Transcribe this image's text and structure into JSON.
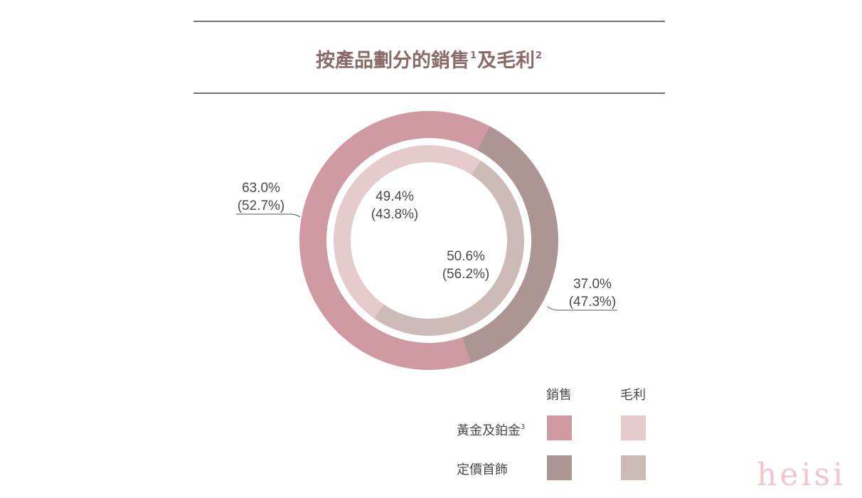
{
  "title": {
    "text": "按產品劃分的銷售",
    "sup1": "1",
    "mid": "及毛利",
    "sup2": "2"
  },
  "chart_data": {
    "type": "pie",
    "variant": "nested-donut",
    "rings": [
      {
        "ring": "outer",
        "name": "銷售",
        "slices": [
          {
            "category": "黃金及鉑金",
            "value": 63.0,
            "label": "63.0%",
            "prior_label": "(52.7%)",
            "color": "#cf9aa2"
          },
          {
            "category": "定價首飾",
            "value": 37.0,
            "label": "37.0%",
            "prior_label": "(47.3%)",
            "color": "#ad9593"
          }
        ]
      },
      {
        "ring": "inner",
        "name": "毛利",
        "slices": [
          {
            "category": "黃金及鉑金",
            "value": 49.4,
            "label": "49.4%",
            "prior_label": "(43.8%)",
            "color": "#e6cbcc"
          },
          {
            "category": "定價首飾",
            "value": 50.6,
            "label": "50.6%",
            "prior_label": "(56.2%)",
            "color": "#cdbbb8"
          }
        ]
      }
    ]
  },
  "legend": {
    "col_sales": "銷售",
    "col_margin": "毛利",
    "row_gold": "黃金及鉑金",
    "row_gold_sup": "3",
    "row_fixed": "定價首飾"
  },
  "colors": {
    "title": "#8a6a66",
    "rule": "#7a7270",
    "sales_gold": "#cf9aa2",
    "sales_fixed": "#ad9593",
    "margin_gold": "#e6cbcc",
    "margin_fixed": "#cdbbb8"
  },
  "watermark": "heisi"
}
